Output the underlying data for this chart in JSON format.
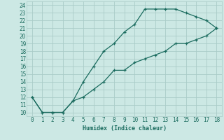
{
  "xlabel": "Humidex (Indice chaleur)",
  "xlim": [
    -0.5,
    18.5
  ],
  "ylim": [
    9.5,
    24.5
  ],
  "xticks": [
    0,
    1,
    2,
    3,
    4,
    5,
    6,
    7,
    8,
    9,
    10,
    11,
    12,
    13,
    14,
    15,
    16,
    17,
    18
  ],
  "yticks": [
    10,
    11,
    12,
    13,
    14,
    15,
    16,
    17,
    18,
    19,
    20,
    21,
    22,
    23,
    24
  ],
  "bg_color": "#cce8e4",
  "grid_color": "#aaccC8",
  "line_color": "#1a6b5e",
  "upper_x": [
    0,
    1,
    2,
    3,
    4,
    5,
    6,
    7,
    8,
    9,
    10,
    11,
    12,
    13,
    14,
    15,
    16,
    17,
    18
  ],
  "upper_y": [
    12,
    10,
    10,
    10,
    11.5,
    14,
    16,
    18,
    19,
    20.5,
    21.5,
    23.5,
    23.5,
    23.5,
    23.5,
    23,
    22.5,
    22,
    21
  ],
  "lower_x": [
    0,
    1,
    2,
    3,
    4,
    5,
    6,
    7,
    8,
    9,
    10,
    11,
    12,
    13,
    14,
    15,
    16,
    17,
    18
  ],
  "lower_y": [
    12,
    10,
    10,
    10,
    11.5,
    12,
    13,
    14,
    15.5,
    15.5,
    16.5,
    17,
    17.5,
    18,
    19,
    19,
    19.5,
    20,
    21
  ]
}
